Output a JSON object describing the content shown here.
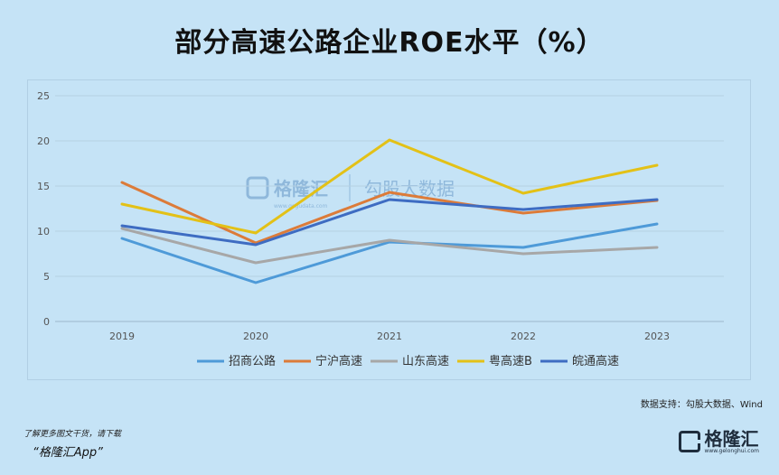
{
  "title": "部分高速公路企业ROE水平（%）",
  "watermark": {
    "brand": "格隆汇",
    "partner": "勾股大数据",
    "url": "www.gogudata.com"
  },
  "source": "数据支持：勾股大数据、Wind",
  "footer": {
    "note": "了解更多图文干货，请下载",
    "app": "“格隆汇App”"
  },
  "brand": {
    "name": "格隆汇",
    "sub": "www.gelonghui.com"
  },
  "colors": {
    "招商公路": "#4e9ad8",
    "宁沪高速": "#dc7b39",
    "山东高速": "#a7a7a7",
    "粤高速B": "#e3c117",
    "皖通高速": "#3e6cc2"
  },
  "chart_data": {
    "type": "line",
    "title": "部分高速公路企业ROE水平（%）",
    "xlabel": "",
    "ylabel": "",
    "categories": [
      "2019",
      "2020",
      "2021",
      "2022",
      "2023"
    ],
    "ylim": [
      0,
      25
    ],
    "yticks": [
      0,
      5,
      10,
      15,
      20,
      25
    ],
    "grid": true,
    "legend_position": "bottom",
    "series": [
      {
        "name": "招商公路",
        "values": [
          9.2,
          4.3,
          8.8,
          8.2,
          10.8
        ]
      },
      {
        "name": "宁沪高速",
        "values": [
          15.4,
          8.7,
          14.3,
          12.0,
          13.4
        ]
      },
      {
        "name": "山东高速",
        "values": [
          10.3,
          6.5,
          9.0,
          7.5,
          8.2
        ]
      },
      {
        "name": "粤高速B",
        "values": [
          13.0,
          9.8,
          20.1,
          14.2,
          17.3
        ]
      },
      {
        "name": "皖通高速",
        "values": [
          10.6,
          8.5,
          13.5,
          12.4,
          13.5
        ]
      }
    ]
  }
}
